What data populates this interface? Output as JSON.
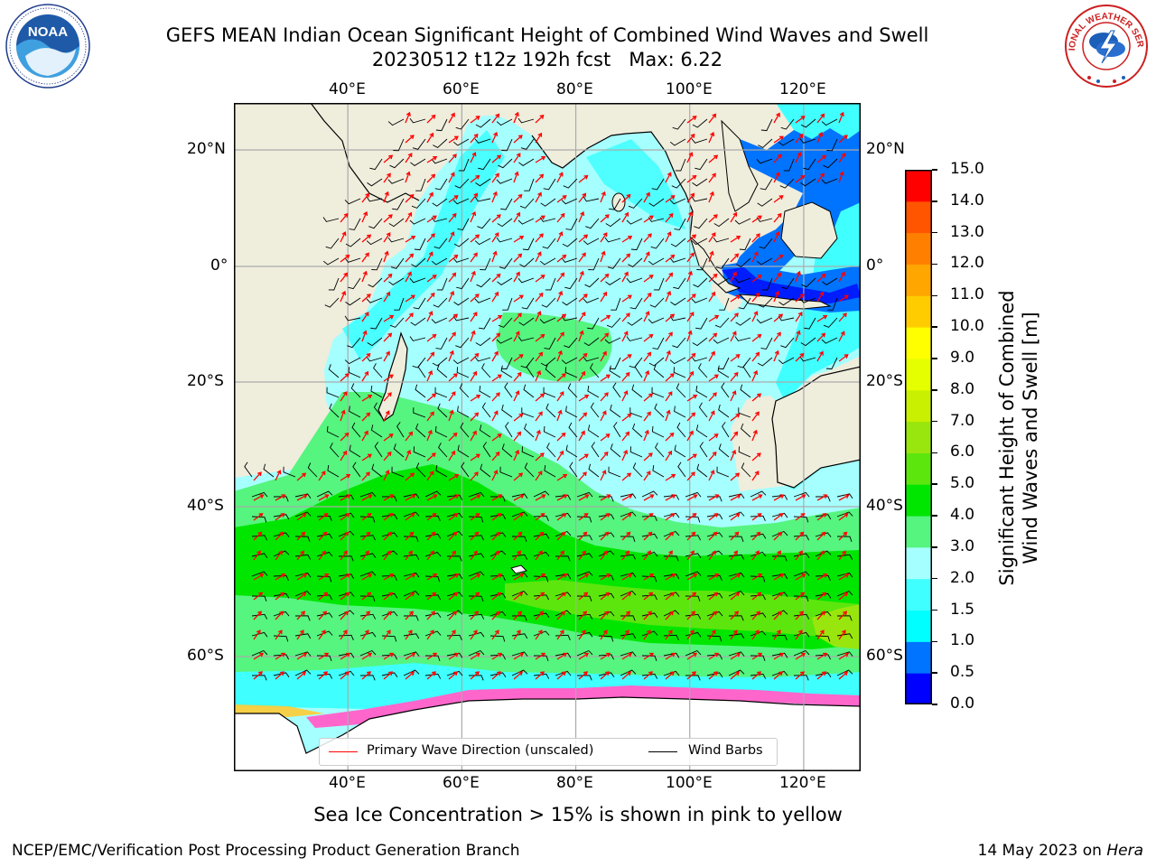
{
  "title": {
    "line1": "GEFS MEAN Indian Ocean Significant Height of Combined Wind Waves and Swell",
    "line2": "20230512 t12z 192h fcst   Max: 6.22"
  },
  "logos": {
    "noaa_text": "NOAA",
    "nws_ring_text": "NATIONAL WEATHER SERVICE"
  },
  "map": {
    "extent": {
      "lon_min": 20,
      "lon_max": 130,
      "lat_min": -70,
      "lat_max": 28
    },
    "lon_ticks": [
      {
        "value": 40,
        "label": "40°E"
      },
      {
        "value": 60,
        "label": "60°E"
      },
      {
        "value": 80,
        "label": "80°E"
      },
      {
        "value": 100,
        "label": "100°E"
      },
      {
        "value": 120,
        "label": "120°E"
      }
    ],
    "lat_ticks": [
      {
        "value": 20,
        "label": "20°N"
      },
      {
        "value": 0,
        "label": "0°"
      },
      {
        "value": -20,
        "label": "20°S"
      },
      {
        "value": -40,
        "label": "40°S"
      },
      {
        "value": -60,
        "label": "60°S"
      }
    ],
    "colors": {
      "land": "#efeddc",
      "ice": "#ffffff",
      "grid": "#aaaaaa",
      "wave_arrow": "#ff0000",
      "wind_barb": "#000000",
      "sea_ice_pink": "#ff66cc",
      "sea_ice_yellow": "#ffcc33"
    },
    "legend": {
      "primary_wave": "Primary Wave Direction (unscaled)",
      "wind_barbs": "Wind Barbs"
    }
  },
  "colorbar": {
    "label_line1": "Significant Height of Combined",
    "label_line2": "Wind Waves and Swell [m]",
    "ticks": [
      "0.0",
      "0.5",
      "1.0",
      "1.5",
      "2.0",
      "3.0",
      "4.0",
      "5.0",
      "6.0",
      "7.0",
      "8.0",
      "9.0",
      "10.0",
      "11.0",
      "12.0",
      "13.0",
      "14.0",
      "15.0"
    ],
    "colors": [
      "#0000ff",
      "#0073ff",
      "#00ffff",
      "#40ffff",
      "#a6ffff",
      "#55f57f",
      "#00e600",
      "#5ce60e",
      "#99e60e",
      "#c8f000",
      "#e6ff00",
      "#ffff00",
      "#ffcc00",
      "#ffa600",
      "#ff8000",
      "#ff5500",
      "#ff0000"
    ]
  },
  "footer": {
    "sea_ice_note": "Sea Ice Concentration > 15% is shown in pink to yellow",
    "credit": "NCEP/EMC/Verification Post Processing Product Generation Branch",
    "date": "14 May 2023 on",
    "host": "Hera"
  }
}
